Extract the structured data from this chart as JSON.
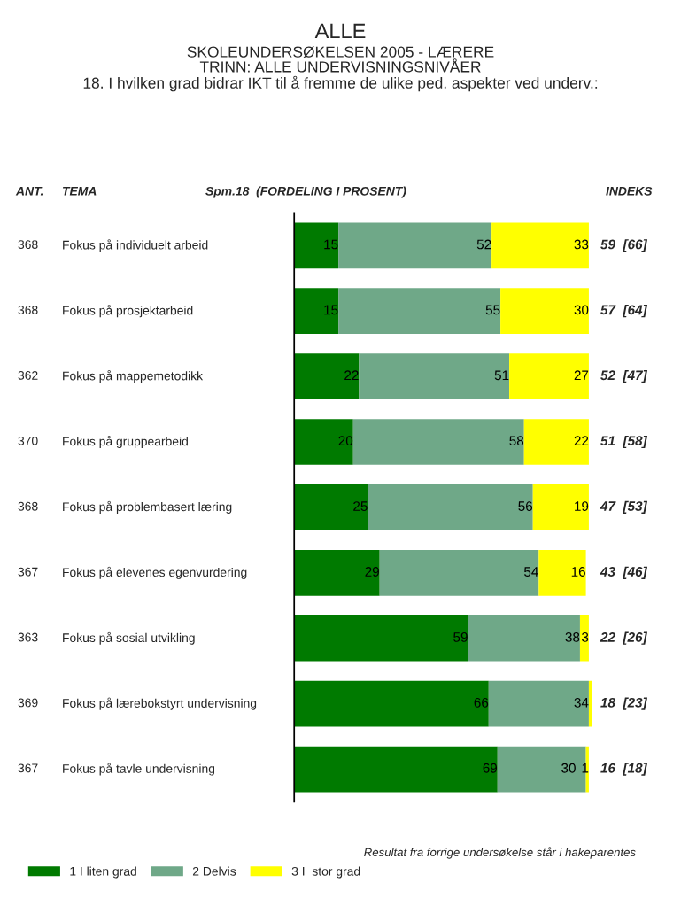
{
  "chart_data": {
    "type": "bar",
    "orientation": "horizontal",
    "stacked": true,
    "title": "ALLE",
    "subtitle": "SKOLEUNDERSØKELSEN 2005 - LÆRERE\nTRINN: ALLE UNDERVISNINGSNIVÅER\n18. I hvilken grad bidrar IKT til å fremme de ulike ped. aspekter ved underv.:",
    "xlabel": "Spm.18  (FORDELING I PROSENT)",
    "categories": [
      "Fokus på individuelt arbeid",
      "Fokus på prosjektarbeid",
      "Fokus på mappemetodikk",
      "Fokus på gruppearbeid",
      "Fokus på problembasert læring",
      "Fokus på elevenes egenvurdering",
      "Fokus på sosial utvikling",
      "Fokus på lærebokstyrt undervisning",
      "Fokus på tavle undervisning"
    ],
    "series": [
      {
        "name": "1 I liten grad",
        "color": "#007a00",
        "values": [
          15,
          15,
          22,
          20,
          25,
          29,
          59,
          66,
          69
        ],
        "value_labels": [
          "15",
          "15",
          "22",
          "20",
          "25",
          "29",
          "59",
          "66",
          "69"
        ]
      },
      {
        "name": "2 Delvis",
        "color": "#6fa888",
        "values": [
          52,
          55,
          51,
          58,
          56,
          54,
          38,
          34,
          30
        ],
        "value_labels": [
          "52",
          "55",
          "51",
          "58",
          "56",
          "54",
          "38",
          "34",
          "30"
        ]
      },
      {
        "name": "3 I  stor grad",
        "color": "#ffff00",
        "values": [
          33,
          30,
          27,
          22,
          19,
          16,
          3,
          1,
          1
        ],
        "value_labels": [
          "33",
          "30",
          "27",
          "22",
          "19",
          "16",
          "3",
          null,
          "1"
        ]
      }
    ],
    "xlim": [
      0,
      101
    ],
    "legend": "bottom left",
    "annotations": [
      "ANT.",
      "TEMA",
      "INDEKS",
      "368",
      "59  [66]",
      "368",
      "57  [64]",
      "362",
      "52  [47]",
      "370",
      "51  [58]",
      "368",
      "47  [53]",
      "367",
      "43  [46]",
      "363",
      "22  [26]",
      "369",
      "18  [23]",
      "367",
      "16  [18]",
      "Resultat fra forrige undersøkelse står i hakeparentes"
    ]
  }
}
